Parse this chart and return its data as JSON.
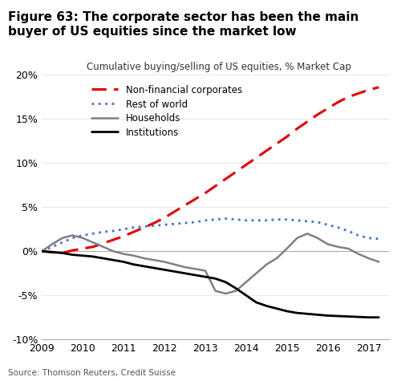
{
  "title": "Figure 63: The corporate sector has been the main\nbuyer of US equities since the market low",
  "subtitle": "Cumulative buying/selling of US equities, % Market Cap",
  "source": "Source: Thomson Reuters, Credit Suisse",
  "ylim": [
    -10,
    20
  ],
  "yticks": [
    -10,
    -5,
    0,
    5,
    10,
    15,
    20
  ],
  "xlim": [
    2009,
    2017.5
  ],
  "xticks": [
    2009,
    2010,
    2011,
    2012,
    2013,
    2014,
    2015,
    2016,
    2017
  ],
  "series": {
    "corporates": {
      "label": "Non-financial corporates",
      "color": "#e00000",
      "linestyle": "dashed",
      "linewidth": 2.2,
      "x": [
        2009.0,
        2009.25,
        2009.5,
        2009.75,
        2010.0,
        2010.25,
        2010.5,
        2010.75,
        2011.0,
        2011.25,
        2011.5,
        2011.75,
        2012.0,
        2012.25,
        2012.5,
        2012.75,
        2013.0,
        2013.25,
        2013.5,
        2013.75,
        2014.0,
        2014.25,
        2014.5,
        2014.75,
        2015.0,
        2015.25,
        2015.5,
        2015.75,
        2016.0,
        2016.25,
        2016.5,
        2016.75,
        2017.0,
        2017.25
      ],
      "y": [
        0.0,
        -0.1,
        -0.2,
        0.1,
        0.3,
        0.5,
        0.9,
        1.3,
        1.7,
        2.2,
        2.7,
        3.2,
        3.8,
        4.5,
        5.2,
        5.9,
        6.6,
        7.4,
        8.2,
        9.0,
        9.8,
        10.6,
        11.4,
        12.2,
        13.0,
        13.9,
        14.7,
        15.5,
        16.2,
        16.9,
        17.5,
        17.9,
        18.3,
        18.6
      ]
    },
    "restofworld": {
      "label": "Rest of world",
      "color": "#4472c4",
      "linestyle": "dotted",
      "linewidth": 2.0,
      "x": [
        2009.0,
        2009.25,
        2009.5,
        2009.75,
        2010.0,
        2010.25,
        2010.5,
        2010.75,
        2011.0,
        2011.25,
        2011.5,
        2011.75,
        2012.0,
        2012.25,
        2012.5,
        2012.75,
        2013.0,
        2013.25,
        2013.5,
        2013.75,
        2014.0,
        2014.25,
        2014.5,
        2014.75,
        2015.0,
        2015.25,
        2015.5,
        2015.75,
        2016.0,
        2016.25,
        2016.5,
        2016.75,
        2017.0,
        2017.25
      ],
      "y": [
        0.0,
        0.5,
        1.0,
        1.5,
        1.8,
        2.0,
        2.2,
        2.3,
        2.5,
        2.7,
        2.8,
        2.9,
        3.0,
        3.1,
        3.2,
        3.3,
        3.5,
        3.6,
        3.7,
        3.6,
        3.5,
        3.5,
        3.5,
        3.6,
        3.6,
        3.5,
        3.4,
        3.3,
        3.0,
        2.7,
        2.3,
        1.8,
        1.5,
        1.4
      ]
    },
    "households": {
      "label": "Households",
      "color": "#808080",
      "linestyle": "solid",
      "linewidth": 1.8,
      "x": [
        2009.0,
        2009.25,
        2009.5,
        2009.75,
        2010.0,
        2010.25,
        2010.5,
        2010.75,
        2011.0,
        2011.25,
        2011.5,
        2011.75,
        2012.0,
        2012.25,
        2012.5,
        2012.75,
        2013.0,
        2013.25,
        2013.5,
        2013.75,
        2014.0,
        2014.25,
        2014.5,
        2014.75,
        2015.0,
        2015.25,
        2015.5,
        2015.75,
        2016.0,
        2016.25,
        2016.5,
        2016.75,
        2017.0,
        2017.25
      ],
      "y": [
        0.0,
        0.8,
        1.5,
        1.8,
        1.5,
        1.0,
        0.5,
        0.0,
        -0.3,
        -0.5,
        -0.8,
        -1.0,
        -1.2,
        -1.5,
        -1.8,
        -2.0,
        -2.2,
        -4.5,
        -4.8,
        -4.5,
        -3.5,
        -2.5,
        -1.5,
        -0.8,
        0.3,
        1.5,
        2.0,
        1.5,
        0.8,
        0.5,
        0.3,
        -0.3,
        -0.8,
        -1.2
      ]
    },
    "institutions": {
      "label": "Institutions",
      "color": "#000000",
      "linestyle": "solid",
      "linewidth": 2.0,
      "x": [
        2009.0,
        2009.25,
        2009.5,
        2009.75,
        2010.0,
        2010.25,
        2010.5,
        2010.75,
        2011.0,
        2011.25,
        2011.5,
        2011.75,
        2012.0,
        2012.25,
        2012.5,
        2012.75,
        2013.0,
        2013.25,
        2013.5,
        2013.75,
        2014.0,
        2014.25,
        2014.5,
        2014.75,
        2015.0,
        2015.25,
        2015.5,
        2015.75,
        2016.0,
        2016.25,
        2016.5,
        2016.75,
        2017.0,
        2017.25
      ],
      "y": [
        0.0,
        -0.1,
        -0.2,
        -0.4,
        -0.5,
        -0.6,
        -0.8,
        -1.0,
        -1.2,
        -1.5,
        -1.7,
        -1.9,
        -2.1,
        -2.3,
        -2.5,
        -2.7,
        -2.9,
        -3.1,
        -3.5,
        -4.2,
        -5.0,
        -5.8,
        -6.2,
        -6.5,
        -6.8,
        -7.0,
        -7.1,
        -7.2,
        -7.3,
        -7.35,
        -7.4,
        -7.45,
        -7.5,
        -7.5
      ]
    }
  }
}
